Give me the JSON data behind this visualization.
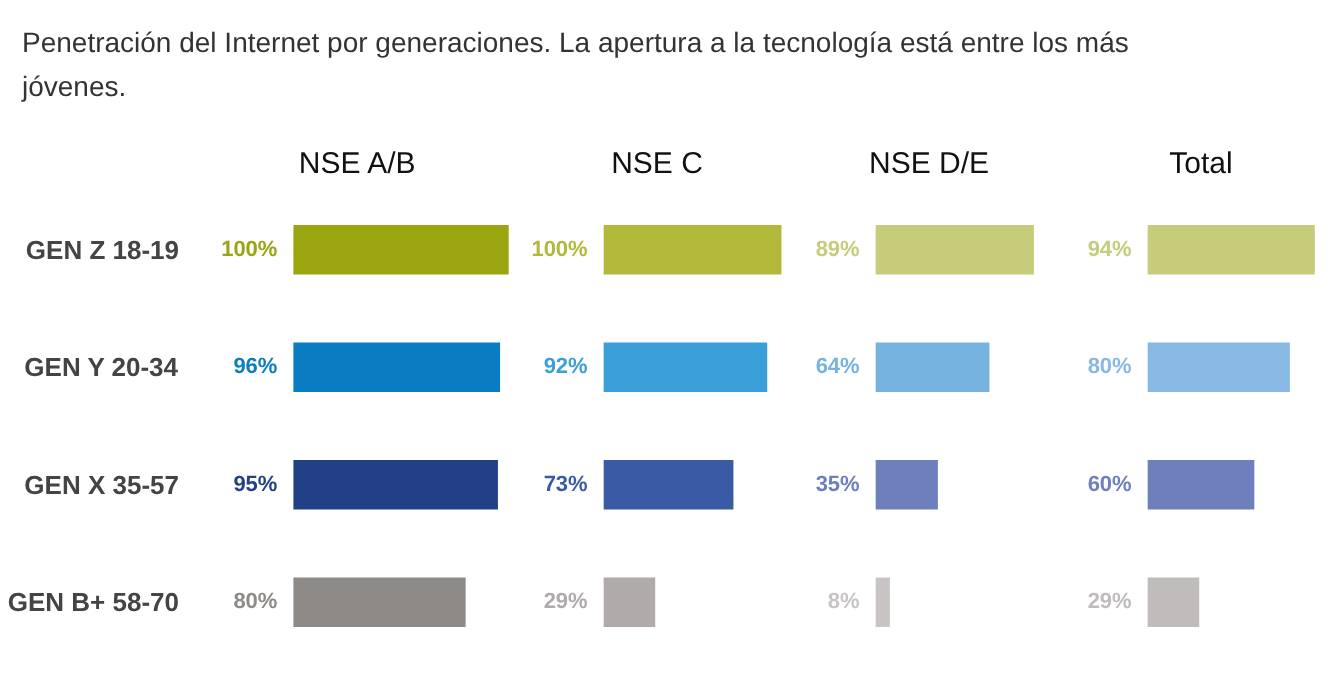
{
  "chart_data": [
    {
      "type": "bar",
      "orientation": "horizontal",
      "title": "NSE A/B",
      "categories": [
        "GEN Z 18-19",
        "GEN Y 20-34",
        "GEN X 35-57",
        "GEN B+ 58-70"
      ],
      "values": [
        100,
        96,
        95,
        80
      ],
      "colors": [
        "#9aa50f",
        "#0a7cc1",
        "#233f86",
        "#8e8a88"
      ],
      "value_labels": [
        "100%",
        "96%",
        "95%",
        "80%"
      ],
      "tick_labels": "y",
      "grid": false,
      "annotations": [
        "Penetración del Internet por generaciones. La apertura a la tecnología está entre los más jóvenes."
      ]
    },
    {
      "type": "bar",
      "orientation": "horizontal",
      "title": "NSE C",
      "categories": [
        null,
        null,
        null,
        null
      ],
      "values": [
        100,
        92,
        73,
        29
      ],
      "colors": [
        "#b2b93a",
        "#3a9ed8",
        "#3b5aa5",
        "#b0abaa"
      ],
      "value_labels": [
        "100%",
        "92%",
        "73%",
        "29%"
      ],
      "tick_labels": false,
      "grid": false
    },
    {
      "type": "bar",
      "orientation": "horizontal",
      "title": "NSE D/E",
      "categories": [
        null,
        null,
        null,
        null
      ],
      "values": [
        89,
        64,
        35,
        8
      ],
      "colors": [
        "#c6cc79",
        "#76b3e0",
        "#6d7fbd",
        "#c8c4c3"
      ],
      "value_labels": [
        "89%",
        "64%",
        "35%",
        "8%"
      ],
      "tick_labels": false,
      "grid": false
    },
    {
      "type": "bar",
      "orientation": "horizontal",
      "title": "Total",
      "categories": [
        null,
        null,
        null,
        null
      ],
      "values": [
        94,
        80,
        60,
        29
      ],
      "colors": [
        "#c6cc79",
        "#87b9e4",
        "#6d7fbd",
        "#c0bcbb"
      ],
      "value_labels": [
        "94%",
        "80%",
        "60%",
        "29%"
      ],
      "tick_labels": false,
      "grid": false
    }
  ]
}
